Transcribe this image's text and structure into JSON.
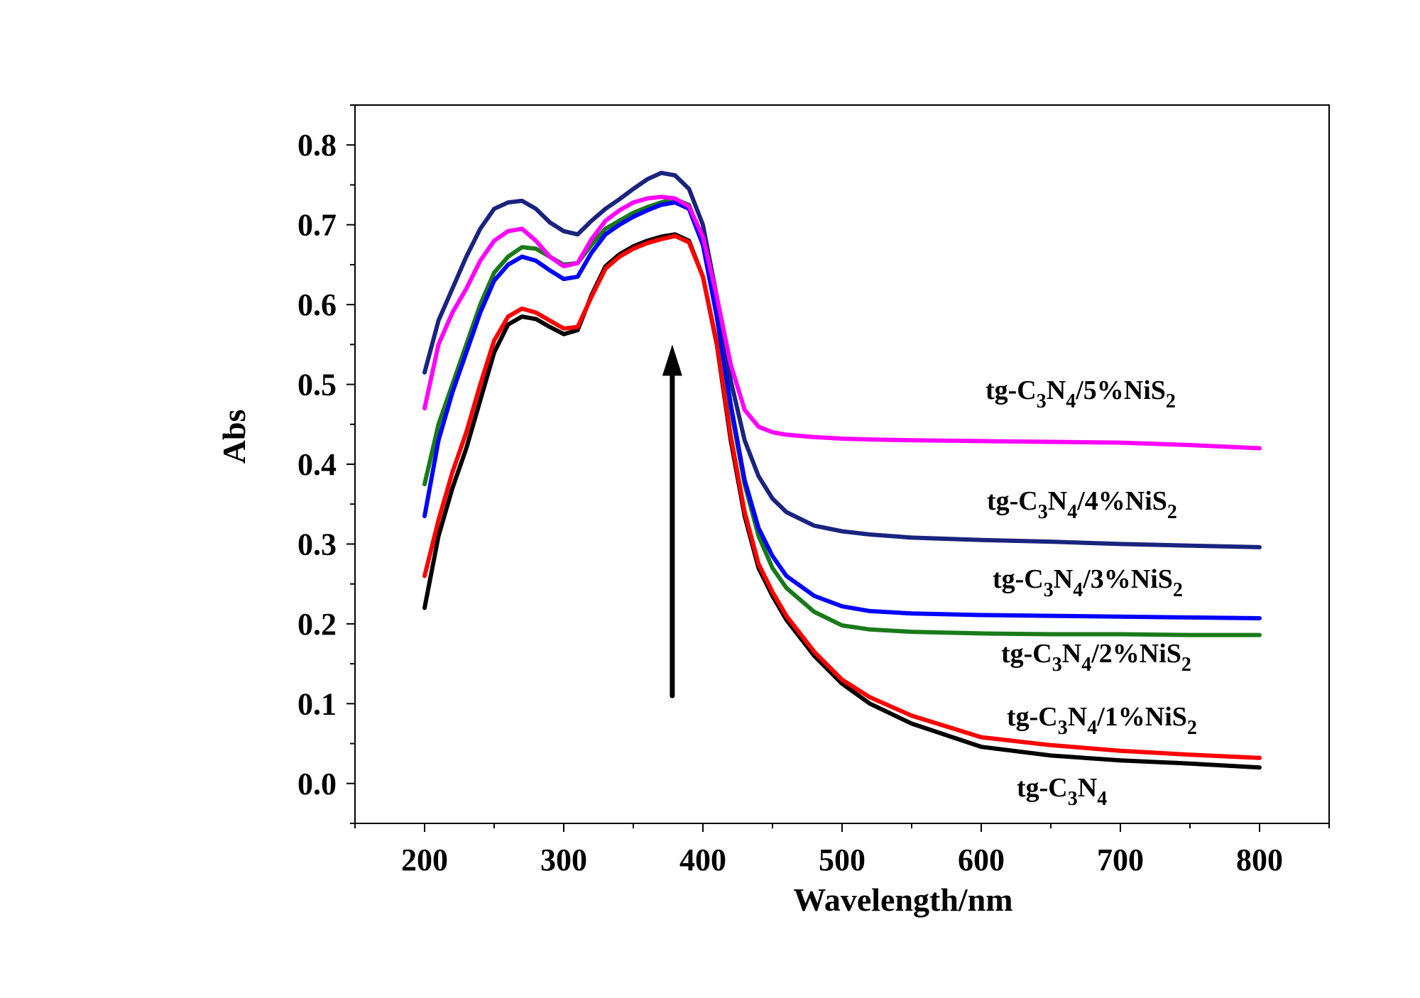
{
  "chart_data": {
    "type": "line",
    "title": "",
    "xlabel": "Wavelength/nm",
    "ylabel": "Abs",
    "xlim": [
      150,
      850
    ],
    "ylim": [
      -0.05,
      0.85
    ],
    "xticks": [
      200,
      300,
      400,
      500,
      600,
      700,
      800
    ],
    "yticks": [
      0.0,
      0.1,
      0.2,
      0.3,
      0.4,
      0.5,
      0.6,
      0.7,
      0.8
    ],
    "xtick_labels": [
      "200",
      "300",
      "400",
      "500",
      "600",
      "700",
      "800"
    ],
    "ytick_labels": [
      "0.0",
      "0.1",
      "0.2",
      "0.3",
      "0.4",
      "0.5",
      "0.6",
      "0.7",
      "0.8"
    ],
    "grid": false,
    "annotation": {
      "type": "arrow",
      "direction": "up",
      "x": 378,
      "y_from": 0.11,
      "y_to": 0.55
    },
    "series": [
      {
        "name": "tg-C3N4",
        "label_parts": [
          [
            "tg-C",
            false
          ],
          [
            "3",
            true
          ],
          [
            "N",
            false
          ],
          [
            "4",
            true
          ]
        ],
        "color": "#000000",
        "x": [
          200,
          210,
          220,
          230,
          240,
          250,
          260,
          270,
          280,
          290,
          300,
          310,
          320,
          330,
          340,
          350,
          360,
          370,
          380,
          390,
          400,
          410,
          420,
          430,
          440,
          450,
          460,
          480,
          500,
          520,
          550,
          600,
          650,
          700,
          750,
          800
        ],
        "y": [
          0.22,
          0.31,
          0.37,
          0.42,
          0.48,
          0.54,
          0.575,
          0.585,
          0.582,
          0.572,
          0.563,
          0.568,
          0.612,
          0.648,
          0.663,
          0.673,
          0.68,
          0.685,
          0.688,
          0.68,
          0.635,
          0.55,
          0.43,
          0.335,
          0.27,
          0.235,
          0.205,
          0.16,
          0.125,
          0.1,
          0.075,
          0.046,
          0.035,
          0.029,
          0.025,
          0.02
        ]
      },
      {
        "name": "tg-C3N4/1%NiS2",
        "label_parts": [
          [
            "tg-C",
            false
          ],
          [
            "3",
            true
          ],
          [
            "N",
            false
          ],
          [
            "4",
            true
          ],
          [
            "/1%NiS",
            false
          ],
          [
            "2",
            true
          ]
        ],
        "color": "#ff0000",
        "x": [
          200,
          210,
          220,
          230,
          240,
          250,
          260,
          270,
          280,
          290,
          300,
          310,
          320,
          330,
          340,
          350,
          360,
          370,
          380,
          390,
          400,
          410,
          420,
          430,
          440,
          450,
          460,
          480,
          500,
          520,
          550,
          600,
          650,
          700,
          750,
          800
        ],
        "y": [
          0.26,
          0.33,
          0.39,
          0.44,
          0.5,
          0.555,
          0.585,
          0.595,
          0.59,
          0.58,
          0.57,
          0.572,
          0.61,
          0.645,
          0.66,
          0.67,
          0.677,
          0.682,
          0.686,
          0.678,
          0.635,
          0.552,
          0.435,
          0.34,
          0.275,
          0.24,
          0.21,
          0.165,
          0.13,
          0.108,
          0.085,
          0.058,
          0.048,
          0.041,
          0.036,
          0.032
        ]
      },
      {
        "name": "tg-C3N4/2%NiS2",
        "label_parts": [
          [
            "tg-C",
            false
          ],
          [
            "3",
            true
          ],
          [
            "N",
            false
          ],
          [
            "4",
            true
          ],
          [
            "/2%NiS",
            false
          ],
          [
            "2",
            true
          ]
        ],
        "color": "#1a7a1a",
        "x": [
          200,
          210,
          220,
          230,
          240,
          250,
          260,
          270,
          280,
          290,
          300,
          310,
          320,
          330,
          340,
          350,
          360,
          370,
          380,
          390,
          400,
          410,
          420,
          430,
          440,
          450,
          460,
          480,
          500,
          520,
          550,
          600,
          650,
          700,
          750,
          800
        ],
        "y": [
          0.375,
          0.45,
          0.5,
          0.55,
          0.6,
          0.64,
          0.66,
          0.672,
          0.67,
          0.66,
          0.65,
          0.652,
          0.675,
          0.695,
          0.705,
          0.715,
          0.722,
          0.728,
          0.732,
          0.725,
          0.678,
          0.585,
          0.47,
          0.375,
          0.31,
          0.27,
          0.245,
          0.215,
          0.198,
          0.193,
          0.19,
          0.188,
          0.187,
          0.187,
          0.186,
          0.186
        ]
      },
      {
        "name": "tg-C3N4/3%NiS2",
        "label_parts": [
          [
            "tg-C",
            false
          ],
          [
            "3",
            true
          ],
          [
            "N",
            false
          ],
          [
            "4",
            true
          ],
          [
            "/3%NiS",
            false
          ],
          [
            "2",
            true
          ]
        ],
        "color": "#0000ff",
        "x": [
          200,
          210,
          220,
          230,
          240,
          250,
          260,
          270,
          280,
          290,
          300,
          310,
          320,
          330,
          340,
          350,
          360,
          370,
          380,
          390,
          400,
          410,
          420,
          430,
          440,
          450,
          460,
          480,
          500,
          520,
          550,
          600,
          650,
          700,
          750,
          800
        ],
        "y": [
          0.335,
          0.43,
          0.49,
          0.54,
          0.59,
          0.63,
          0.65,
          0.66,
          0.655,
          0.643,
          0.632,
          0.635,
          0.665,
          0.688,
          0.7,
          0.71,
          0.718,
          0.725,
          0.728,
          0.72,
          0.675,
          0.585,
          0.475,
          0.38,
          0.32,
          0.285,
          0.26,
          0.235,
          0.222,
          0.216,
          0.213,
          0.211,
          0.21,
          0.209,
          0.208,
          0.207
        ]
      },
      {
        "name": "tg-C3N4/4%NiS2",
        "label_parts": [
          [
            "tg-C",
            false
          ],
          [
            "3",
            true
          ],
          [
            "N",
            false
          ],
          [
            "4",
            true
          ],
          [
            "/4%NiS",
            false
          ],
          [
            "2",
            true
          ]
        ],
        "color": "#1a237e",
        "x": [
          200,
          210,
          220,
          230,
          240,
          250,
          260,
          270,
          280,
          290,
          300,
          310,
          320,
          330,
          340,
          350,
          360,
          370,
          380,
          390,
          400,
          410,
          420,
          430,
          440,
          450,
          460,
          480,
          500,
          520,
          550,
          600,
          650,
          700,
          750,
          800
        ],
        "y": [
          0.515,
          0.58,
          0.62,
          0.66,
          0.695,
          0.72,
          0.728,
          0.73,
          0.72,
          0.703,
          0.692,
          0.688,
          0.705,
          0.72,
          0.732,
          0.745,
          0.757,
          0.765,
          0.762,
          0.745,
          0.7,
          0.61,
          0.505,
          0.43,
          0.385,
          0.357,
          0.34,
          0.323,
          0.316,
          0.312,
          0.308,
          0.305,
          0.303,
          0.3,
          0.298,
          0.296
        ]
      },
      {
        "name": "tg-C3N4/5%NiS2",
        "label_parts": [
          [
            "tg-C",
            false
          ],
          [
            "3",
            true
          ],
          [
            "N",
            false
          ],
          [
            "4",
            true
          ],
          [
            "/5%NiS",
            false
          ],
          [
            "2",
            true
          ]
        ],
        "color": "#ff00ff",
        "x": [
          200,
          210,
          220,
          230,
          240,
          250,
          260,
          270,
          280,
          290,
          300,
          310,
          320,
          330,
          340,
          350,
          360,
          370,
          380,
          390,
          400,
          410,
          420,
          430,
          440,
          450,
          460,
          480,
          500,
          520,
          550,
          600,
          650,
          700,
          750,
          800
        ],
        "y": [
          0.47,
          0.55,
          0.59,
          0.62,
          0.655,
          0.68,
          0.692,
          0.695,
          0.68,
          0.66,
          0.648,
          0.652,
          0.682,
          0.705,
          0.718,
          0.728,
          0.733,
          0.735,
          0.733,
          0.723,
          0.685,
          0.61,
          0.525,
          0.468,
          0.447,
          0.44,
          0.437,
          0.434,
          0.432,
          0.431,
          0.43,
          0.429,
          0.428,
          0.427,
          0.424,
          0.42
        ]
      }
    ]
  }
}
